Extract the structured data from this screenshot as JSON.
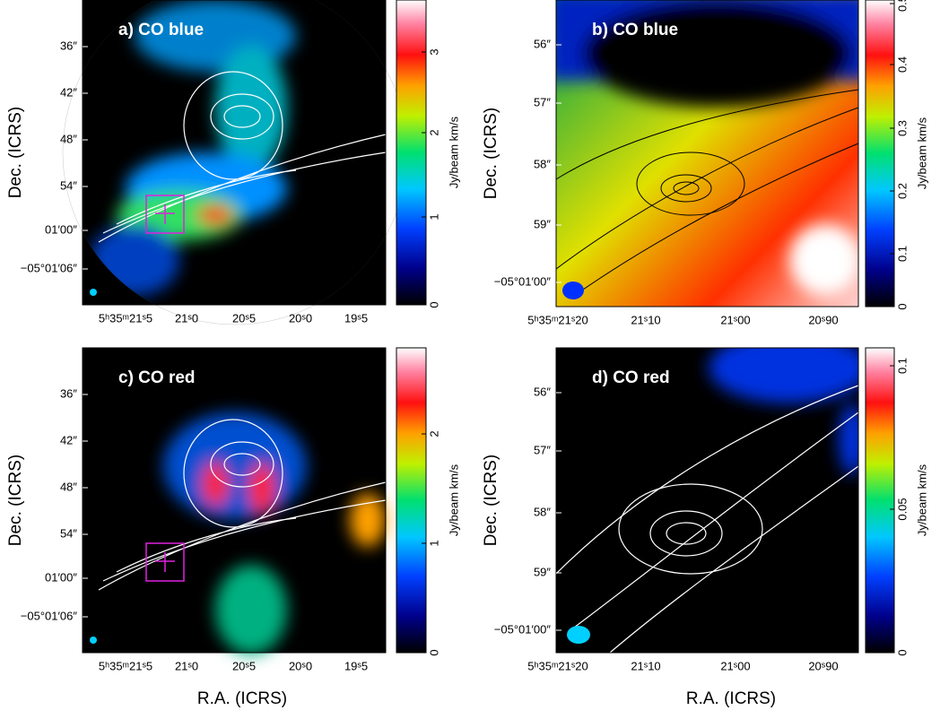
{
  "panels": [
    {
      "title": "a) CO blue",
      "dec_label": "Dec. (ICRS)",
      "dec_ticks": [
        "36″",
        "42″",
        "48″",
        "54″",
        "01′00″",
        "−05°01′06″"
      ],
      "ra_ticks": [
        "5ʰ35ᵐ21ˢ5",
        "21ˢ0",
        "20ˢ5",
        "20ˢ0",
        "19ˢ5"
      ],
      "colorbar": {
        "label": "Jy/beam km/s",
        "ticks": [
          "0",
          "1",
          "2",
          "3"
        ]
      }
    },
    {
      "title": "b) CO blue",
      "dec_label": "Dec. (ICRS)",
      "dec_ticks": [
        "56″",
        "57″",
        "58″",
        "59″",
        "−05°01′00″"
      ],
      "ra_ticks": [
        "5ʰ35ᵐ21ˢ20",
        "21ˢ10",
        "21ˢ00",
        "20ˢ90"
      ],
      "colorbar": {
        "label": "Jy/beam km/s",
        "ticks": [
          "0",
          "0.1",
          "0.2",
          "0.3",
          "0.4",
          "0.5"
        ]
      }
    },
    {
      "title": "c) CO red",
      "dec_label": "Dec. (ICRS)",
      "ra_label": "R.A. (ICRS)",
      "dec_ticks": [
        "36″",
        "42″",
        "48″",
        "54″",
        "01′00″",
        "−05°01′06″"
      ],
      "ra_ticks": [
        "5ʰ35ᵐ21ˢ5",
        "21ˢ0",
        "20ˢ5",
        "20ˢ0",
        "19ˢ5"
      ],
      "colorbar": {
        "label": "Jy/beam km/s",
        "ticks": [
          "0",
          "1",
          "2"
        ]
      }
    },
    {
      "title": "d) CO red",
      "dec_label": "Dec. (ICRS)",
      "ra_label": "R.A. (ICRS)",
      "dec_ticks": [
        "56″",
        "57″",
        "58″",
        "59″",
        "−05°01′00″"
      ],
      "ra_ticks": [
        "5ʰ35ᵐ21ˢ20",
        "21ˢ10",
        "21ˢ00",
        "20ˢ90"
      ],
      "colorbar": {
        "label": "Jy/beam km/s",
        "ticks": [
          "0",
          "0.05",
          "0.1"
        ]
      }
    }
  ]
}
